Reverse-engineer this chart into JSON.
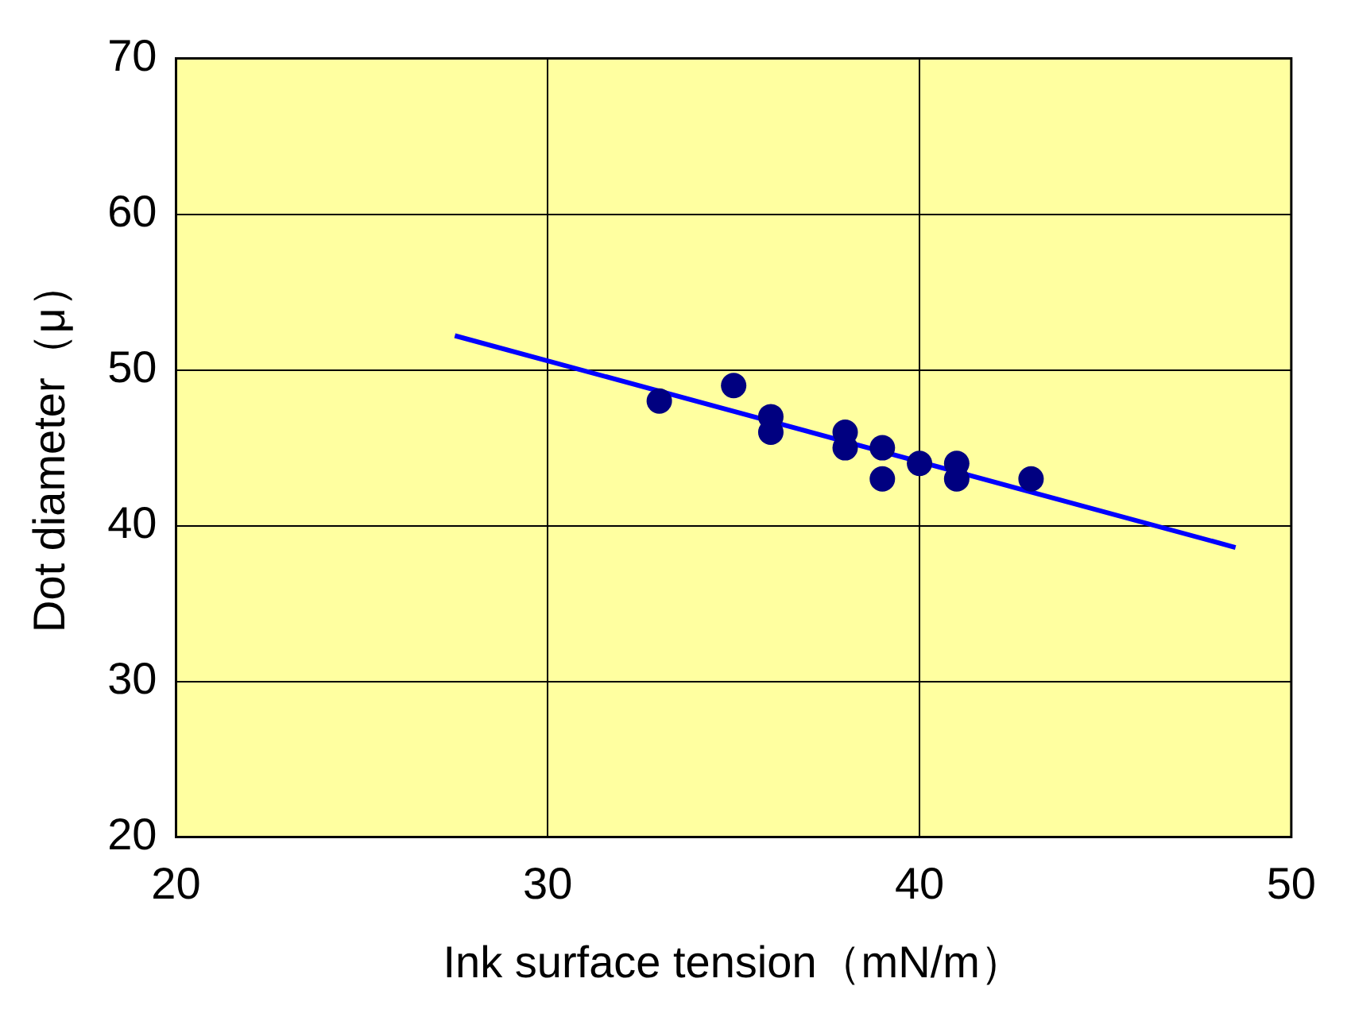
{
  "chart_data": {
    "type": "scatter",
    "xlabel": "Ink surface tension（mN/m）",
    "ylabel": "Dot diameter（μ）",
    "xlim": [
      20,
      50
    ],
    "xticks": [
      20,
      30,
      40,
      50
    ],
    "ylim": [
      20,
      70
    ],
    "yticks": [
      20,
      30,
      40,
      50,
      60,
      70
    ],
    "grid": true,
    "legend": false,
    "marker": "circle",
    "series": [
      {
        "type": "scatter",
        "color": "#000080",
        "x": [
          33,
          35,
          36,
          36,
          38,
          38,
          39,
          39,
          40,
          41,
          41,
          43
        ],
        "values": [
          48,
          49,
          47,
          46,
          46,
          45,
          45,
          43,
          44,
          44,
          43,
          43
        ]
      },
      {
        "type": "line",
        "color": "#0000ff",
        "marker": "none",
        "x": [
          27.5,
          48.5
        ],
        "values": [
          52.2,
          38.6
        ]
      }
    ]
  }
}
